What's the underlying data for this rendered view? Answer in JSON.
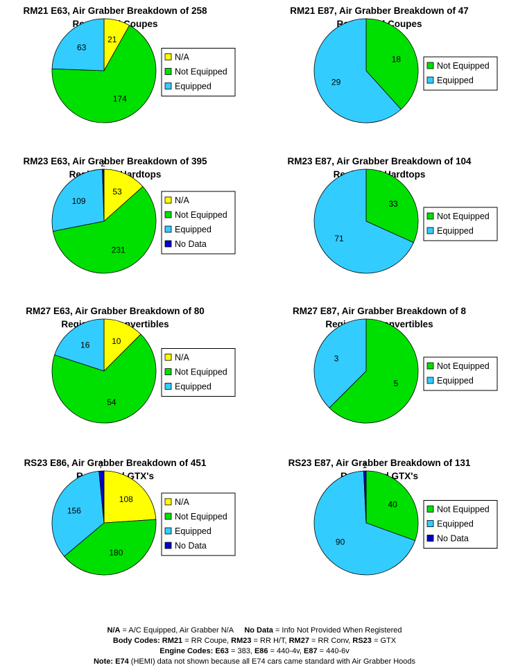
{
  "colors": {
    "N/A": "#ffff00",
    "Not Equipped": "#00e000",
    "Equipped": "#33ccff",
    "No Data": "#0000cc"
  },
  "chart_data": [
    {
      "type": "pie",
      "title": [
        "RM21 E63, Air Grabber Breakdown of 258",
        "Registered Coupes"
      ],
      "legend": [
        "N/A",
        "Not Equipped",
        "Equipped"
      ],
      "slices": [
        {
          "label": "N/A",
          "value": 21
        },
        {
          "label": "Not Equipped",
          "value": 174
        },
        {
          "label": "Equipped",
          "value": 63
        }
      ]
    },
    {
      "type": "pie",
      "title": [
        "RM21 E87, Air Grabber Breakdown of 47",
        "Registered Coupes"
      ],
      "legend": [
        "Not Equipped",
        "Equipped"
      ],
      "slices": [
        {
          "label": "Not Equipped",
          "value": 18
        },
        {
          "label": "Equipped",
          "value": 29
        }
      ]
    },
    {
      "type": "pie",
      "title": [
        "RM23 E63, Air Grabber Breakdown of 395",
        "Registered Hardtops"
      ],
      "legend": [
        "N/A",
        "Not Equipped",
        "Equipped",
        "No Data"
      ],
      "slices": [
        {
          "label": "N/A",
          "value": 53
        },
        {
          "label": "Not Equipped",
          "value": 231
        },
        {
          "label": "Equipped",
          "value": 109
        },
        {
          "label": "No Data",
          "value": 2
        }
      ]
    },
    {
      "type": "pie",
      "title": [
        "RM23 E87, Air Grabber Breakdown of 104",
        "Registered Hardtops"
      ],
      "legend": [
        "Not Equipped",
        "Equipped"
      ],
      "slices": [
        {
          "label": "Not Equipped",
          "value": 33
        },
        {
          "label": "Equipped",
          "value": 71
        }
      ]
    },
    {
      "type": "pie",
      "title": [
        "RM27 E63, Air Grabber Breakdown of 80",
        "Registered Convertibles"
      ],
      "legend": [
        "N/A",
        "Not Equipped",
        "Equipped"
      ],
      "slices": [
        {
          "label": "N/A",
          "value": 10
        },
        {
          "label": "Not Equipped",
          "value": 54
        },
        {
          "label": "Equipped",
          "value": 16
        }
      ]
    },
    {
      "type": "pie",
      "title": [
        "RM27 E87, Air Grabber Breakdown of 8",
        "Registered Convertibles"
      ],
      "legend": [
        "Not Equipped",
        "Equipped"
      ],
      "slices": [
        {
          "label": "Not Equipped",
          "value": 5
        },
        {
          "label": "Equipped",
          "value": 3
        }
      ]
    },
    {
      "type": "pie",
      "title": [
        "RS23 E86, Air Grabber Breakdown of 451",
        "Registered GTX's"
      ],
      "legend": [
        "N/A",
        "Not Equipped",
        "Equipped",
        "No Data"
      ],
      "slices": [
        {
          "label": "N/A",
          "value": 108
        },
        {
          "label": "Not Equipped",
          "value": 180
        },
        {
          "label": "Equipped",
          "value": 156
        },
        {
          "label": "No Data",
          "value": 7
        }
      ]
    },
    {
      "type": "pie",
      "title": [
        "RS23 E87, Air Grabber Breakdown of 131",
        "Registered GTX's"
      ],
      "legend": [
        "Not Equipped",
        "Equipped",
        "No Data"
      ],
      "slices": [
        {
          "label": "Not Equipped",
          "value": 40
        },
        {
          "label": "Equipped",
          "value": 90
        },
        {
          "label": "No Data",
          "value": 1
        }
      ]
    }
  ],
  "footer": {
    "line1_a_bold": "N/A",
    "line1_a_text": " = A/C Equipped, Air Grabber N/A",
    "line1_b_bold": "No Data",
    "line1_b_text": " = Info Not Provided When Registered",
    "line2_label": "Body Codes:",
    "line2_items": [
      {
        "code": "RM21",
        "desc": " = RR Coupe, "
      },
      {
        "code": "RM23",
        "desc": " = RR H/T, "
      },
      {
        "code": "RM27",
        "desc": " = RR Conv, "
      },
      {
        "code": "RS23",
        "desc": " = GTX"
      }
    ],
    "line3_label": "Engine Codes:",
    "line3_items": [
      {
        "code": "E63",
        "desc": " = 383, "
      },
      {
        "code": "E86",
        "desc": " = 440-4v, "
      },
      {
        "code": "E87",
        "desc": " = 440-6v"
      }
    ],
    "line4_bold": "Note: E74",
    "line4_text": " (HEMI) data not shown because all E74 cars came standard with Air Grabber Hoods"
  }
}
